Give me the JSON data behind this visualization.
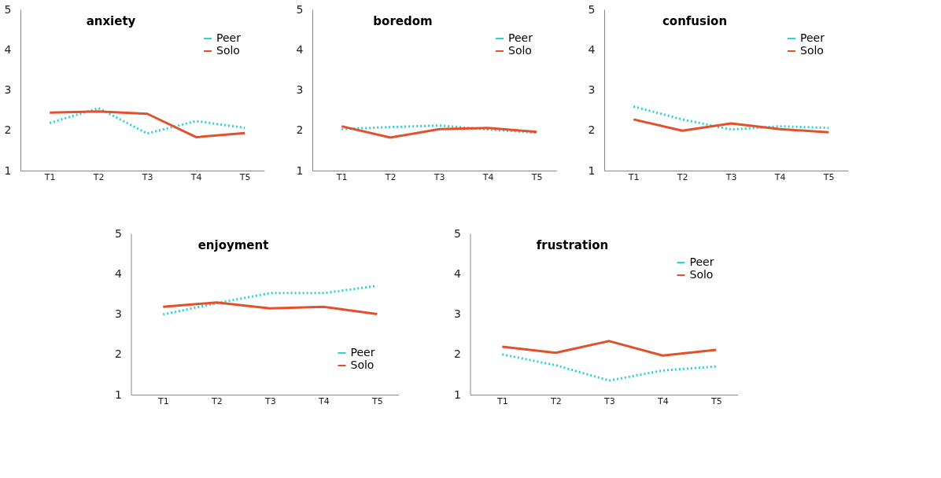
{
  "chart_data": [
    {
      "type": "line",
      "title": "anxiety",
      "categories": [
        "T1",
        "T2",
        "T3",
        "T4",
        "T5"
      ],
      "ylim": [
        1,
        5
      ],
      "yticks": [
        1,
        2,
        3,
        4,
        5
      ],
      "grid": false,
      "legend": "top right",
      "series": [
        {
          "name": "Peer",
          "color": "#2ad4d4",
          "line_style": "dotted",
          "values": [
            2.18,
            2.55,
            1.92,
            2.23,
            2.06
          ]
        },
        {
          "name": "Solo",
          "color": "#e4502b",
          "line_style": "solid",
          "values": [
            2.44,
            2.47,
            2.41,
            1.83,
            1.93
          ]
        }
      ]
    },
    {
      "type": "line",
      "title": "boredom",
      "categories": [
        "T1",
        "T2",
        "T3",
        "T4",
        "T5"
      ],
      "ylim": [
        1,
        5
      ],
      "yticks": [
        1,
        2,
        3,
        4,
        5
      ],
      "grid": false,
      "legend": "top right",
      "series": [
        {
          "name": "Peer",
          "color": "#2ad4d4",
          "line_style": "dotted",
          "values": [
            2.03,
            2.08,
            2.12,
            2.02,
            1.94
          ]
        },
        {
          "name": "Solo",
          "color": "#e4502b",
          "line_style": "solid",
          "values": [
            2.1,
            1.82,
            2.03,
            2.06,
            1.96
          ]
        }
      ]
    },
    {
      "type": "line",
      "title": "confusion",
      "categories": [
        "T1",
        "T2",
        "T3",
        "T4",
        "T5"
      ],
      "ylim": [
        1,
        5
      ],
      "yticks": [
        1,
        2,
        3,
        4,
        5
      ],
      "grid": false,
      "legend": "top right",
      "series": [
        {
          "name": "Peer",
          "color": "#2ad4d4",
          "line_style": "dotted",
          "values": [
            2.59,
            2.27,
            2.02,
            2.1,
            2.06
          ]
        },
        {
          "name": "Solo",
          "color": "#e4502b",
          "line_style": "solid",
          "values": [
            2.27,
            1.99,
            2.17,
            2.03,
            1.95
          ]
        }
      ]
    },
    {
      "type": "line",
      "title": "enjoyment",
      "categories": [
        "T1",
        "T2",
        "T3",
        "T4",
        "T5"
      ],
      "ylim": [
        1,
        5
      ],
      "yticks": [
        1,
        2,
        3,
        4,
        5
      ],
      "grid": false,
      "legend": "bottom right",
      "series": [
        {
          "name": "Peer",
          "color": "#2ad4d4",
          "line_style": "dotted",
          "values": [
            2.99,
            3.27,
            3.52,
            3.52,
            3.7
          ]
        },
        {
          "name": "Solo",
          "color": "#e4502b",
          "line_style": "solid",
          "values": [
            3.18,
            3.29,
            3.14,
            3.18,
            3.0
          ]
        }
      ]
    },
    {
      "type": "line",
      "title": "frustration",
      "categories": [
        "T1",
        "T2",
        "T3",
        "T4",
        "T5"
      ],
      "ylim": [
        1,
        5
      ],
      "yticks": [
        1,
        2,
        3,
        4,
        5
      ],
      "grid": false,
      "legend": "top right",
      "series": [
        {
          "name": "Peer",
          "color": "#2ad4d4",
          "line_style": "dotted",
          "values": [
            2.0,
            1.73,
            1.35,
            1.6,
            1.7
          ]
        },
        {
          "name": "Solo",
          "color": "#e4502b",
          "line_style": "solid",
          "values": [
            2.19,
            2.04,
            2.33,
            1.97,
            2.11
          ]
        }
      ]
    }
  ]
}
